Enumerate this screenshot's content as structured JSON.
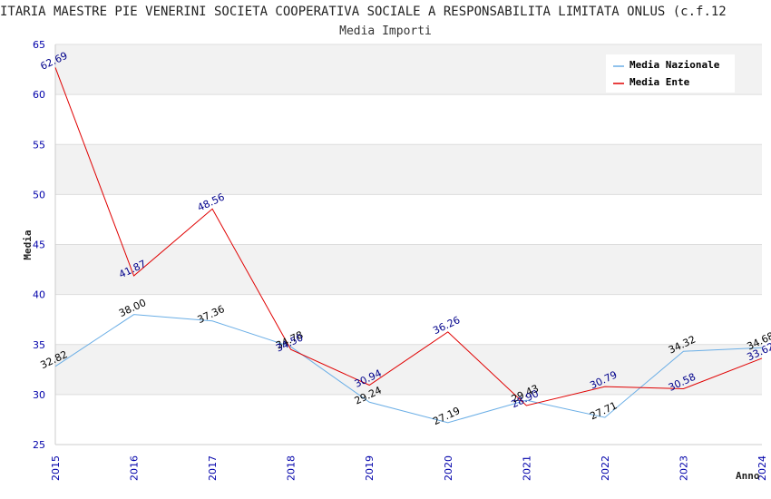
{
  "chart_data": {
    "type": "line",
    "title": "ITARIA MAESTRE PIE VENERINI SOCIETA COOPERATIVA SOCIALE A RESPONSABILITA LIMITATA ONLUS (c.f.12",
    "subtitle": "Media Importi",
    "xlabel": "Anno",
    "ylabel": "Media",
    "ylim": [
      25,
      65
    ],
    "yticks": [
      25,
      30,
      35,
      40,
      45,
      50,
      55,
      60,
      65
    ],
    "x": [
      "2015",
      "2016",
      "2017",
      "2018",
      "2019",
      "2020",
      "2021",
      "2022",
      "2023",
      "2024"
    ],
    "series": [
      {
        "name": "Media Nazionale",
        "color": "#6aaee6",
        "label_color": "#000000",
        "values": [
          32.82,
          38.0,
          37.36,
          34.78,
          29.24,
          27.19,
          29.43,
          27.71,
          34.32,
          34.68
        ],
        "labels": [
          "32.82",
          "38.00",
          "37.36",
          "34.78",
          "29.24",
          "27.19",
          "29.43",
          "27.71",
          "34.32",
          "34.68"
        ]
      },
      {
        "name": "Media Ente",
        "color": "#e00000",
        "label_color": "#00008b",
        "values": [
          62.69,
          41.87,
          48.56,
          34.5,
          30.94,
          36.26,
          28.9,
          30.79,
          30.58,
          33.62
        ],
        "labels": [
          "62.69",
          "41.87",
          "48.56",
          "34.50",
          "30.94",
          "36.26",
          "28.90",
          "30.79",
          "30.58",
          "33.62"
        ]
      }
    ],
    "grid": true,
    "legend_position": "top-right"
  }
}
